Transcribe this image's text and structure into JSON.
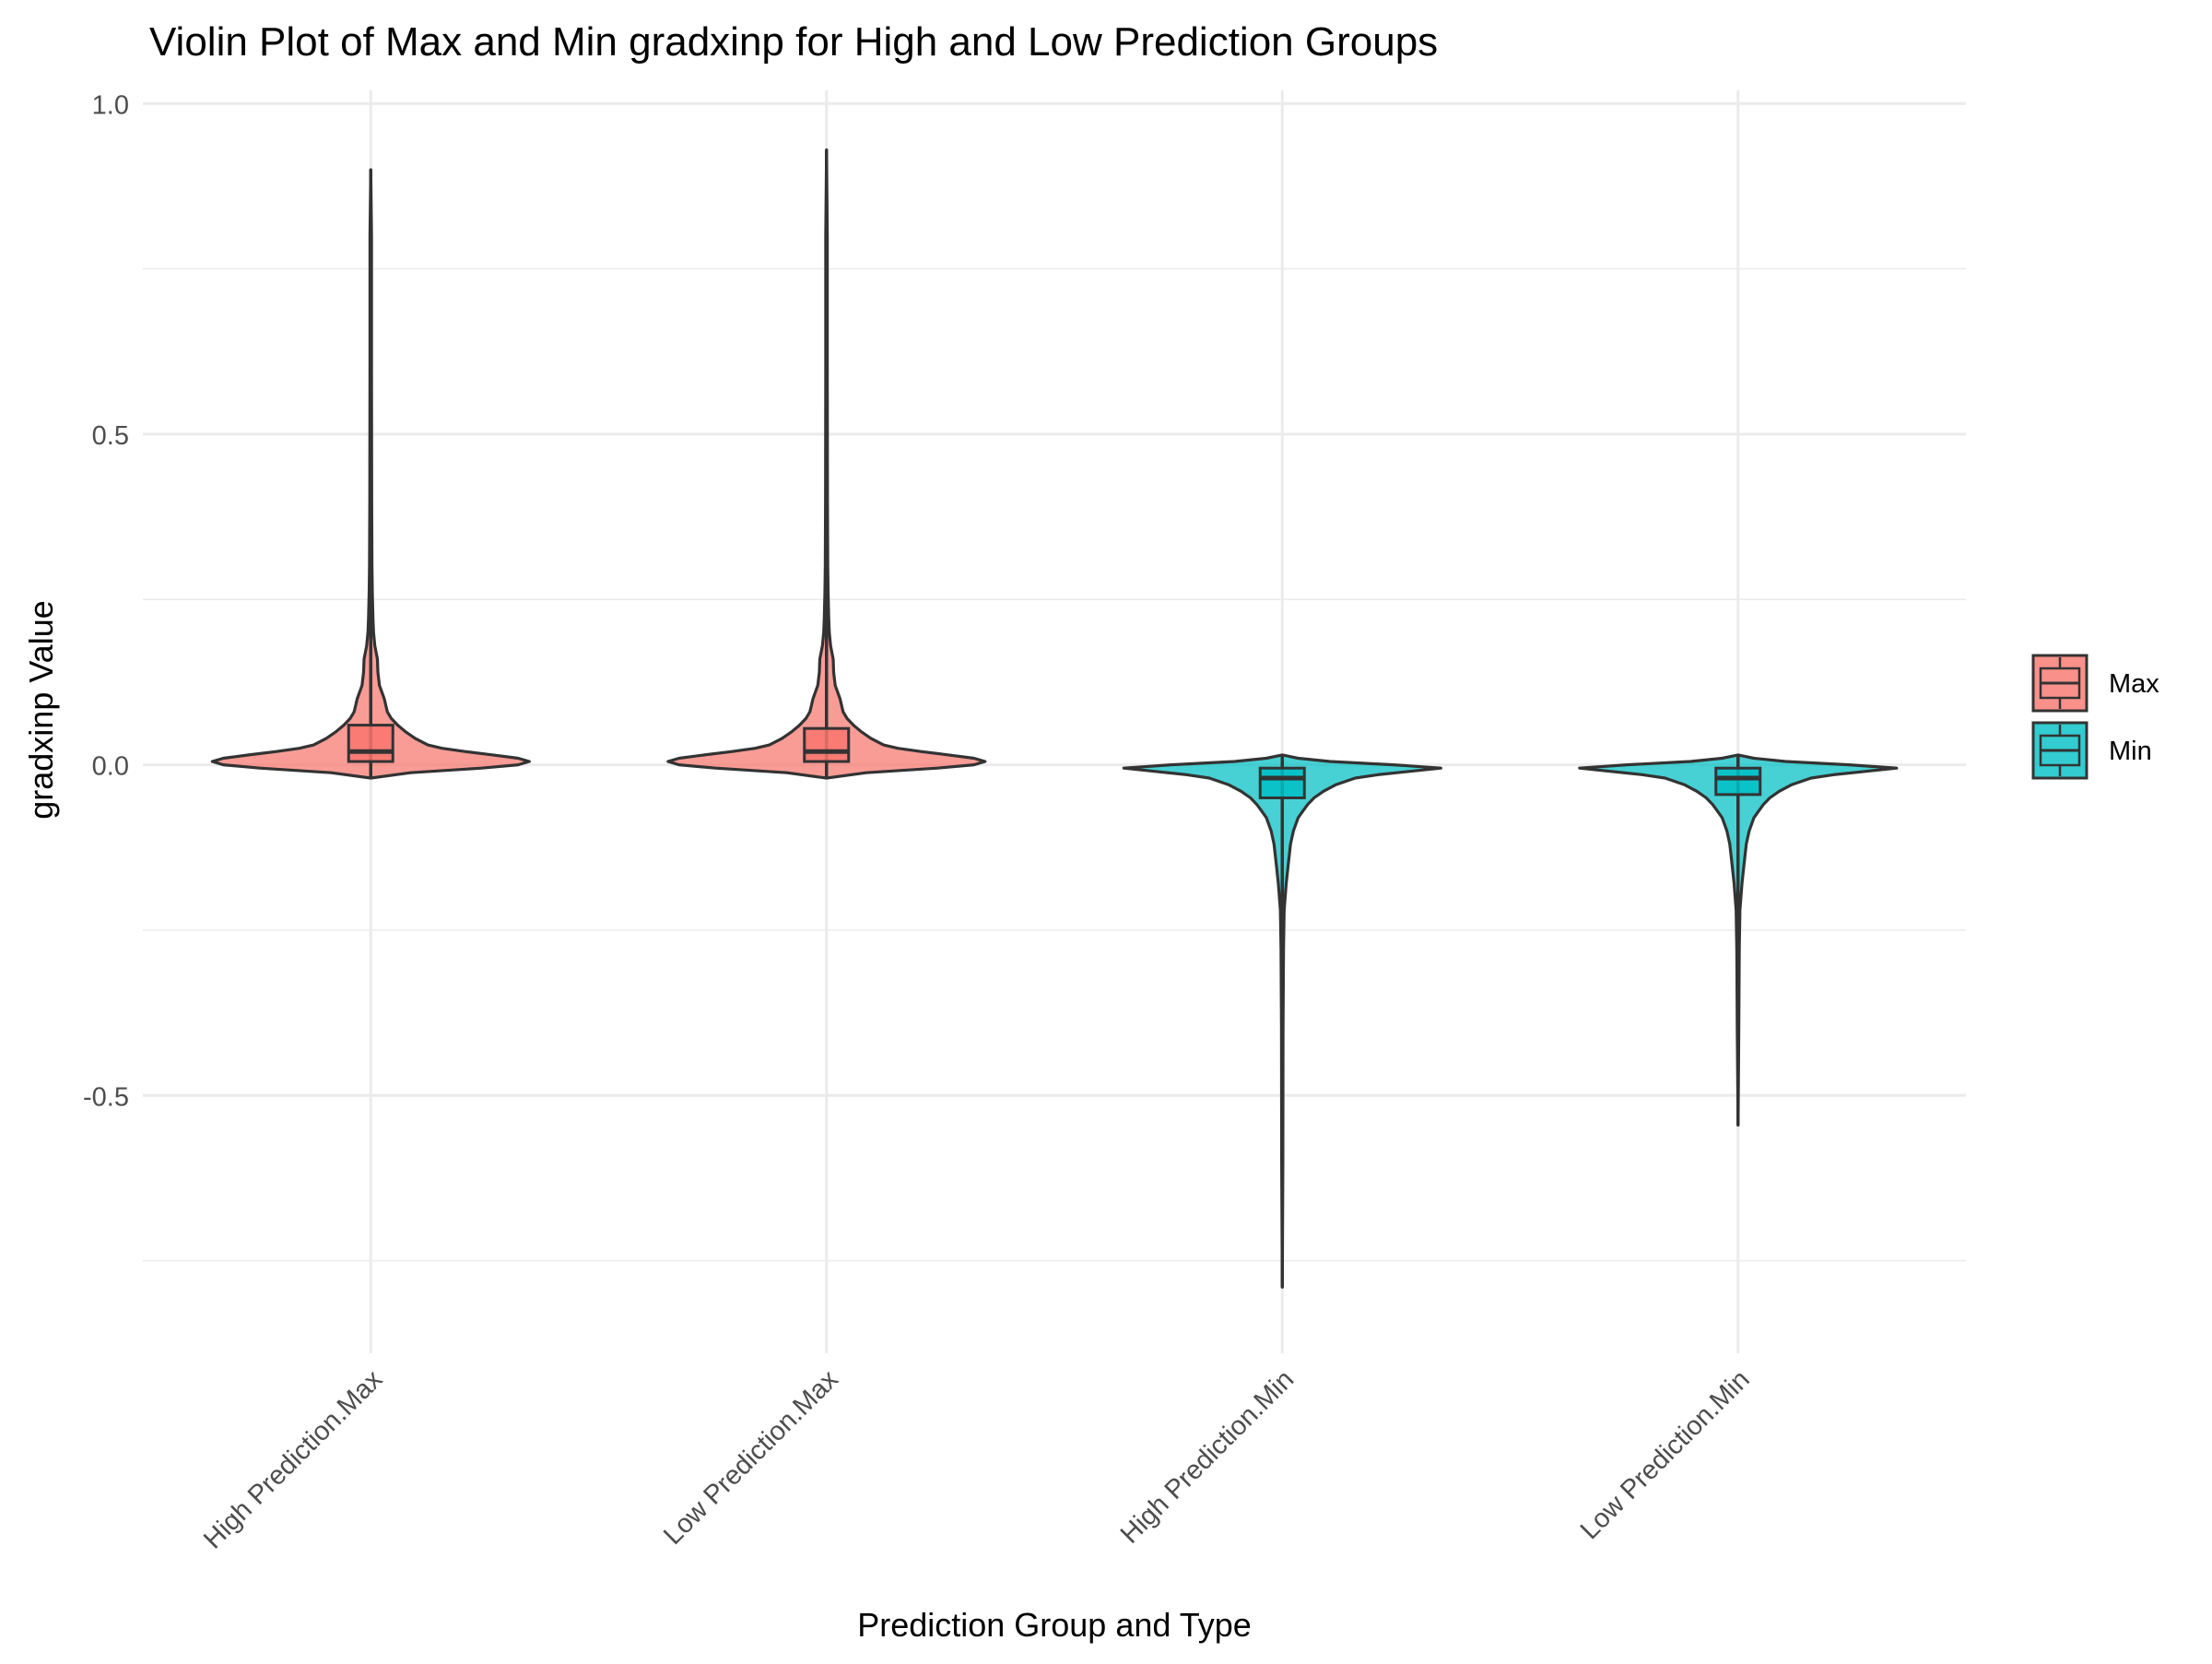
{
  "chart_data": {
    "type": "violin",
    "title": "Violin Plot of Max and Min gradxinp for High and Low Prediction Groups",
    "xlabel": "Prediction Group and Type",
    "ylabel": "gradxinp Value",
    "ylim": [
      -0.89,
      1.02
    ],
    "yticks": [
      -0.5,
      0.0,
      0.5,
      1.0
    ],
    "ytick_labels": [
      "-0.5",
      "0.0",
      "0.5",
      "1.0"
    ],
    "grid": true,
    "legend": {
      "placement": "right",
      "entries": [
        {
          "name": "Max",
          "color": "#F8766D"
        },
        {
          "name": "Min",
          "color": "#00BFC4"
        }
      ]
    },
    "categories": [
      "High Prediction.Max",
      "Low Prediction.Max",
      "High Prediction.Min",
      "Low Prediction.Min"
    ],
    "groups": [
      {
        "category": "High Prediction.Max",
        "type": "Max",
        "min": -0.02,
        "max": 0.9,
        "box": {
          "q1": 0.005,
          "median": 0.02,
          "q3": 0.06,
          "whisker_low": 0.0,
          "whisker_high": 0.14
        },
        "density": [
          [
            -0.02,
            0.0
          ],
          [
            -0.012,
            0.25
          ],
          [
            -0.005,
            0.7
          ],
          [
            0.0,
            0.93
          ],
          [
            0.005,
            1.0
          ],
          [
            0.01,
            0.93
          ],
          [
            0.015,
            0.77
          ],
          [
            0.02,
            0.6
          ],
          [
            0.025,
            0.45
          ],
          [
            0.03,
            0.36
          ],
          [
            0.04,
            0.28
          ],
          [
            0.05,
            0.22
          ],
          [
            0.06,
            0.17
          ],
          [
            0.07,
            0.13
          ],
          [
            0.08,
            0.105
          ],
          [
            0.09,
            0.095
          ],
          [
            0.1,
            0.085
          ],
          [
            0.11,
            0.07
          ],
          [
            0.12,
            0.055
          ],
          [
            0.14,
            0.045
          ],
          [
            0.16,
            0.042
          ],
          [
            0.18,
            0.026
          ],
          [
            0.2,
            0.018
          ],
          [
            0.22,
            0.014
          ],
          [
            0.26,
            0.01
          ],
          [
            0.3,
            0.008
          ],
          [
            0.4,
            0.006
          ],
          [
            0.6,
            0.005
          ],
          [
            0.8,
            0.005
          ],
          [
            0.9,
            0.0
          ]
        ]
      },
      {
        "category": "Low Prediction.Max",
        "type": "Max",
        "min": -0.02,
        "max": 0.93,
        "box": {
          "q1": 0.005,
          "median": 0.02,
          "q3": 0.055,
          "whisker_low": 0.0,
          "whisker_high": 0.135
        },
        "density": [
          [
            -0.02,
            0.0
          ],
          [
            -0.012,
            0.25
          ],
          [
            -0.005,
            0.7
          ],
          [
            0.0,
            0.93
          ],
          [
            0.005,
            1.0
          ],
          [
            0.01,
            0.93
          ],
          [
            0.015,
            0.77
          ],
          [
            0.02,
            0.6
          ],
          [
            0.025,
            0.45
          ],
          [
            0.03,
            0.36
          ],
          [
            0.04,
            0.28
          ],
          [
            0.05,
            0.22
          ],
          [
            0.06,
            0.17
          ],
          [
            0.07,
            0.13
          ],
          [
            0.08,
            0.105
          ],
          [
            0.09,
            0.095
          ],
          [
            0.1,
            0.085
          ],
          [
            0.11,
            0.07
          ],
          [
            0.12,
            0.055
          ],
          [
            0.14,
            0.045
          ],
          [
            0.16,
            0.042
          ],
          [
            0.18,
            0.026
          ],
          [
            0.2,
            0.018
          ],
          [
            0.22,
            0.014
          ],
          [
            0.26,
            0.01
          ],
          [
            0.3,
            0.008
          ],
          [
            0.4,
            0.006
          ],
          [
            0.6,
            0.005
          ],
          [
            0.8,
            0.005
          ],
          [
            0.93,
            0.0
          ]
        ]
      },
      {
        "category": "High Prediction.Min",
        "type": "Min",
        "min": -0.79,
        "max": 0.015,
        "box": {
          "q1": -0.05,
          "median": -0.02,
          "q3": -0.005,
          "whisker_low": -0.115,
          "whisker_high": 0.0
        },
        "density": [
          [
            0.015,
            0.0
          ],
          [
            0.01,
            0.1
          ],
          [
            0.005,
            0.3
          ],
          [
            0.0,
            0.7
          ],
          [
            -0.005,
            1.0
          ],
          [
            -0.01,
            0.8
          ],
          [
            -0.015,
            0.6
          ],
          [
            -0.02,
            0.46
          ],
          [
            -0.03,
            0.34
          ],
          [
            -0.04,
            0.26
          ],
          [
            -0.05,
            0.2
          ],
          [
            -0.06,
            0.16
          ],
          [
            -0.07,
            0.13
          ],
          [
            -0.08,
            0.1
          ],
          [
            -0.1,
            0.07
          ],
          [
            -0.12,
            0.052
          ],
          [
            -0.15,
            0.038
          ],
          [
            -0.18,
            0.025
          ],
          [
            -0.22,
            0.012
          ],
          [
            -0.28,
            0.008
          ],
          [
            -0.4,
            0.005
          ],
          [
            -0.6,
            0.004
          ],
          [
            -0.79,
            0.0
          ]
        ]
      },
      {
        "category": "Low Prediction.Min",
        "type": "Min",
        "min": -0.545,
        "max": 0.015,
        "box": {
          "q1": -0.045,
          "median": -0.02,
          "q3": -0.005,
          "whisker_low": -0.1,
          "whisker_high": 0.0
        },
        "density": [
          [
            0.015,
            0.0
          ],
          [
            0.01,
            0.1
          ],
          [
            0.005,
            0.3
          ],
          [
            0.0,
            0.7
          ],
          [
            -0.005,
            1.0
          ],
          [
            -0.01,
            0.8
          ],
          [
            -0.015,
            0.6
          ],
          [
            -0.02,
            0.46
          ],
          [
            -0.03,
            0.34
          ],
          [
            -0.04,
            0.26
          ],
          [
            -0.05,
            0.2
          ],
          [
            -0.06,
            0.16
          ],
          [
            -0.07,
            0.13
          ],
          [
            -0.08,
            0.1
          ],
          [
            -0.1,
            0.07
          ],
          [
            -0.12,
            0.052
          ],
          [
            -0.15,
            0.038
          ],
          [
            -0.18,
            0.025
          ],
          [
            -0.22,
            0.012
          ],
          [
            -0.28,
            0.008
          ],
          [
            -0.4,
            0.005
          ],
          [
            -0.545,
            0.0
          ]
        ]
      }
    ]
  }
}
